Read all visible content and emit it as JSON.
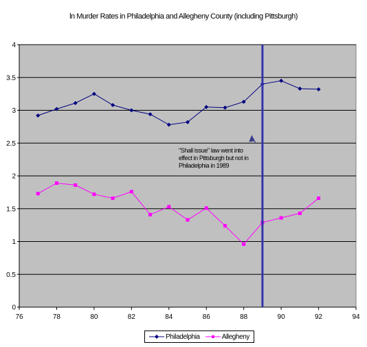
{
  "chart_data": {
    "type": "line",
    "title": "ln Murder Rates in Philadelphia and Allegheny County (including Pittsburgh)",
    "xlabel": "",
    "ylabel": "",
    "xlim": [
      76,
      94
    ],
    "ylim": [
      0,
      4
    ],
    "x_ticks": [
      "76",
      "78",
      "80",
      "82",
      "84",
      "86",
      "88",
      "90",
      "92",
      "94"
    ],
    "y_ticks": [
      "0",
      "0.5",
      "1",
      "1.5",
      "2",
      "2.5",
      "3",
      "3.5",
      "4"
    ],
    "grid": "horizontal",
    "legend_position": "bottom",
    "series": [
      {
        "name": "Philadelphia",
        "color": "#000080",
        "marker": "diamond",
        "x": [
          77,
          78,
          79,
          80,
          81,
          82,
          83,
          84,
          85,
          86,
          87,
          88,
          89,
          90,
          91,
          92
        ],
        "y": [
          2.92,
          3.02,
          3.11,
          3.25,
          3.08,
          3.0,
          2.94,
          2.78,
          2.82,
          3.05,
          3.04,
          3.13,
          3.4,
          3.45,
          3.33,
          3.32
        ]
      },
      {
        "name": "Allegheny",
        "color": "#ff00ff",
        "marker": "square",
        "x": [
          77,
          78,
          79,
          80,
          81,
          82,
          83,
          84,
          85,
          86,
          87,
          88,
          89,
          90,
          91,
          92
        ],
        "y": [
          1.73,
          1.89,
          1.86,
          1.72,
          1.66,
          1.76,
          1.41,
          1.53,
          1.33,
          1.51,
          1.24,
          0.96,
          1.29,
          1.36,
          1.43,
          1.66
        ]
      }
    ],
    "reference_line": {
      "x": 89,
      "color": "#3333aa"
    },
    "annotation": {
      "lines": [
        "\"Shall issue\" law went into",
        "effect in Pittsburgh but not in",
        "Philadelphia in 1989"
      ],
      "arrow_to": {
        "x": 88.5,
        "y": 2.55
      }
    }
  }
}
